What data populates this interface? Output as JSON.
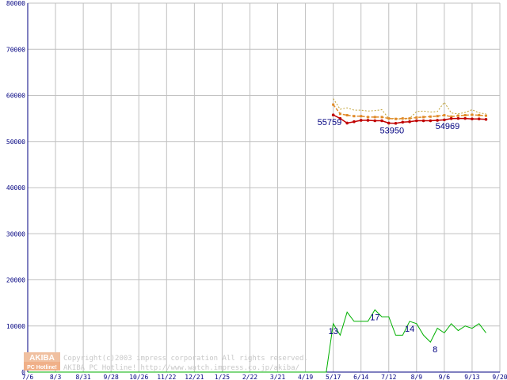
{
  "chart_data": {
    "type": "line",
    "categories": [
      "7/6",
      "8/3",
      "8/31",
      "9/28",
      "10/26",
      "11/22",
      "12/21",
      "1/25",
      "2/22",
      "3/21",
      "4/19",
      "5/17",
      "6/14",
      "7/12",
      "8/9",
      "9/6",
      "9/13",
      "9/20"
    ],
    "ylim": [
      0,
      80000
    ],
    "yticks": [
      "0",
      "10000",
      "20000",
      "30000",
      "40000",
      "50000",
      "60000",
      "70000",
      "80000"
    ],
    "grid": true,
    "colors": {
      "max": "#c0a030",
      "avg": "#e08a28",
      "min": "#c00000",
      "count": "#00b000",
      "grid": "#c0c0c0",
      "axis": "#000080"
    },
    "series": [
      {
        "id": "max",
        "x": [
          11.0,
          11.25,
          11.5,
          11.75,
          12.0,
          12.25,
          12.5,
          12.75,
          13.0,
          13.25,
          13.5,
          13.75,
          14.0,
          14.25,
          14.5,
          14.75,
          15.0,
          15.25,
          15.5,
          15.75,
          16.0,
          16.25,
          16.5
        ],
        "values": [
          59300,
          57000,
          57300,
          56800,
          56800,
          56600,
          56700,
          56900,
          55000,
          55000,
          54800,
          55000,
          56500,
          56600,
          56400,
          56500,
          58500,
          56200,
          56000,
          56300,
          56900,
          56200,
          56000
        ]
      },
      {
        "id": "avg",
        "x": [
          11.0,
          11.25,
          11.5,
          11.75,
          12.0,
          12.25,
          12.5,
          12.75,
          13.0,
          13.25,
          13.5,
          13.75,
          14.0,
          14.25,
          14.5,
          14.75,
          15.0,
          15.25,
          15.5,
          15.75,
          16.0,
          16.25,
          16.5
        ],
        "values": [
          58000,
          56000,
          55700,
          55500,
          55500,
          55300,
          55300,
          55300,
          55000,
          54900,
          55000,
          55000,
          55200,
          55300,
          55400,
          55500,
          55700,
          55400,
          55600,
          55700,
          55800,
          55700,
          55600
        ]
      },
      {
        "id": "min",
        "x": [
          11.0,
          11.25,
          11.5,
          11.75,
          12.0,
          12.25,
          12.5,
          12.75,
          13.0,
          13.25,
          13.5,
          13.75,
          14.0,
          14.25,
          14.5,
          14.75,
          15.0,
          15.25,
          15.5,
          15.75,
          16.0,
          16.25,
          16.5
        ],
        "values": [
          55759,
          55000,
          54000,
          54300,
          54600,
          54600,
          54500,
          54500,
          54000,
          53950,
          54200,
          54300,
          54500,
          54500,
          54500,
          54600,
          54700,
          54969,
          55000,
          55000,
          54900,
          54900,
          54800
        ]
      },
      {
        "id": "count",
        "x": [
          0,
          10.75,
          11.0,
          11.25,
          11.5,
          11.75,
          12.0,
          12.25,
          12.5,
          12.75,
          13.0,
          13.25,
          13.5,
          13.75,
          14.0,
          14.25,
          14.5,
          14.75,
          15.0,
          15.25,
          15.5,
          15.75,
          16.0,
          16.25,
          16.5
        ],
        "values": [
          0,
          0,
          10500,
          8000,
          13000,
          11000,
          11000,
          11000,
          13500,
          12000,
          12000,
          8000,
          8000,
          11000,
          10500,
          8000,
          6500,
          9500,
          8500,
          10500,
          9000,
          10000,
          9500,
          10500,
          8500
        ]
      }
    ],
    "annotations": [
      {
        "text": "55759",
        "x": 11.0,
        "y": 55759
      },
      {
        "text": "53950",
        "x": 13.25,
        "y": 53950
      },
      {
        "text": "54969",
        "x": 15.25,
        "y": 54969
      },
      {
        "text": "13",
        "x": 11.0,
        "y": 10500
      },
      {
        "text": "17",
        "x": 12.5,
        "y": 13500
      },
      {
        "text": "14",
        "x": 13.75,
        "y": 11000
      },
      {
        "text": "8",
        "x": 14.75,
        "y": 6500
      }
    ]
  },
  "watermark": {
    "logo_top": "AKIBA",
    "logo_bottom": "PC Hotline!",
    "line1": "Copyright(c)2003 impress corporation All rights reserved.",
    "line2": "AKIBA PC Hotline!  http://www.watch.impress.co.jp/akiba/"
  }
}
